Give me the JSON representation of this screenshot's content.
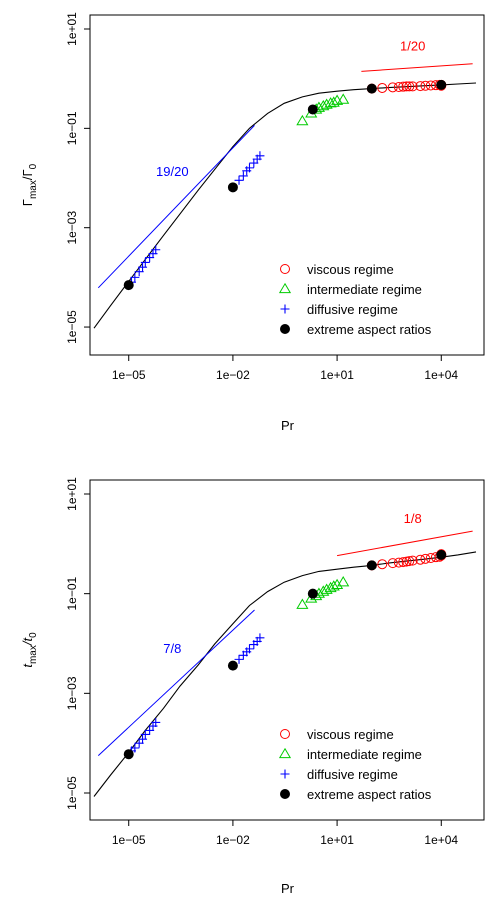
{
  "chart_data": [
    {
      "type": "scatter",
      "xlabel": "Pr",
      "ylabel_main": "Γ",
      "ylabel_sub_num": "max",
      "ylabel_div": "/Γ",
      "ylabel_sub_den": "0",
      "x_log": true,
      "y_log": true,
      "xlim": [
        1e-06,
        100000
      ],
      "ylim": [
        5e-06,
        10
      ],
      "x_ticks": [
        {
          "v": 1e-05,
          "label": "1e−05"
        },
        {
          "v": 0.01,
          "label": "1e−02"
        },
        {
          "v": 10,
          "label": "1e+01"
        },
        {
          "v": 10000,
          "label": "1e+04"
        }
      ],
      "y_ticks": [
        {
          "v": 1e-05,
          "label": "1e−05"
        },
        {
          "v": 0.001,
          "label": "1e−03"
        },
        {
          "v": 0.1,
          "label": "1e−01"
        },
        {
          "v": 10,
          "label": "1e+01"
        }
      ],
      "legend_position": "bottom-right",
      "legend": [
        {
          "key": "viscous",
          "label": "viscous regime",
          "marker": "circle-open",
          "color": "#ff0000"
        },
        {
          "key": "intermediate",
          "label": "intermediate regime",
          "marker": "triangle-open",
          "color": "#00cc00"
        },
        {
          "key": "diffusive",
          "label": "diffusive regime",
          "marker": "plus",
          "color": "#0000ff"
        },
        {
          "key": "extreme",
          "label": "extreme aspect ratios",
          "marker": "circle-filled",
          "color": "#000000"
        }
      ],
      "curve": {
        "x": [
          1e-06,
          3e-06,
          1e-05,
          3e-05,
          0.0001,
          0.0003,
          0.001,
          0.003,
          0.01,
          0.03,
          0.1,
          0.3,
          1,
          3,
          10,
          30,
          100,
          300,
          1000,
          3000,
          10000,
          30000,
          100000
        ],
        "y": [
          9.5e-06,
          2.7e-05,
          8.3e-05,
          0.00023,
          0.0007,
          0.0019,
          0.0057,
          0.015,
          0.043,
          0.1,
          0.2,
          0.32,
          0.43,
          0.51,
          0.56,
          0.6,
          0.63,
          0.66,
          0.69,
          0.72,
          0.75,
          0.78,
          0.82
        ]
      },
      "slopes": [
        {
          "label": "19/20",
          "color": "#0000ff",
          "x": [
            1.33e-06,
            0.0419
          ],
          "y": [
            6.17e-05,
            0.1148
          ],
          "label_x": 0.00018,
          "label_y": 0.011
        },
        {
          "label": "1/20",
          "color": "#ff0000",
          "x": [
            50,
            80000
          ],
          "y": [
            1.4,
            2.0
          ],
          "label_x": 1500,
          "label_y": 3.7
        }
      ],
      "series": [
        {
          "key": "viscous",
          "points": [
            [
              100,
              0.63
            ],
            [
              200,
              0.65
            ],
            [
              400,
              0.67
            ],
            [
              600,
              0.68
            ],
            [
              800,
              0.69
            ],
            [
              1000,
              0.7
            ],
            [
              1200,
              0.7
            ],
            [
              1500,
              0.7
            ],
            [
              2500,
              0.71
            ],
            [
              3500,
              0.72
            ],
            [
              5000,
              0.73
            ],
            [
              7000,
              0.74
            ],
            [
              9000,
              0.75
            ],
            [
              10000,
              0.75
            ],
            [
              10000,
              0.72
            ]
          ]
        },
        {
          "key": "intermediate",
          "points": [
            [
              1,
              0.14
            ],
            [
              1.8,
              0.2
            ],
            [
              2.5,
              0.24
            ],
            [
              3,
              0.26
            ],
            [
              4,
              0.28
            ],
            [
              5,
              0.3
            ],
            [
              6.5,
              0.32
            ],
            [
              8,
              0.33
            ],
            [
              10,
              0.36
            ],
            [
              15,
              0.38
            ]
          ]
        },
        {
          "key": "diffusive",
          "points": [
            [
              1e-05,
              7e-05
            ],
            [
              1.2e-05,
              8e-05
            ],
            [
              1.5e-05,
              0.0001
            ],
            [
              2e-05,
              0.00013
            ],
            [
              2.5e-05,
              0.00016
            ],
            [
              3e-05,
              0.0002
            ],
            [
              4e-05,
              0.00025
            ],
            [
              5e-05,
              0.0003
            ],
            [
              6e-05,
              0.00036
            ],
            [
              0.01,
              0.0065
            ],
            [
              0.015,
              0.009
            ],
            [
              0.02,
              0.011
            ],
            [
              0.025,
              0.014
            ],
            [
              0.03,
              0.016
            ],
            [
              0.04,
              0.02
            ],
            [
              0.05,
              0.024
            ],
            [
              0.06,
              0.028
            ]
          ]
        },
        {
          "key": "extreme",
          "points": [
            [
              1e-05,
              7e-05
            ],
            [
              0.01,
              0.0065
            ],
            [
              2,
              0.24
            ],
            [
              100,
              0.63
            ],
            [
              10000,
              0.75
            ]
          ]
        }
      ]
    },
    {
      "type": "scatter",
      "xlabel": "Pr",
      "ylabel_main": "t",
      "ylabel_sub_num": "max",
      "ylabel_div": "/t",
      "ylabel_sub_den": "0",
      "x_log": true,
      "y_log": true,
      "xlim": [
        1e-06,
        100000
      ],
      "ylim": [
        5e-06,
        10
      ],
      "x_ticks": [
        {
          "v": 1e-05,
          "label": "1e−05"
        },
        {
          "v": 0.01,
          "label": "1e−02"
        },
        {
          "v": 10,
          "label": "1e+01"
        },
        {
          "v": 10000,
          "label": "1e+04"
        }
      ],
      "y_ticks": [
        {
          "v": 1e-05,
          "label": "1e−05"
        },
        {
          "v": 0.001,
          "label": "1e−03"
        },
        {
          "v": 0.1,
          "label": "1e−01"
        },
        {
          "v": 10,
          "label": "1e+01"
        }
      ],
      "legend_position": "bottom-right",
      "legend": [
        {
          "key": "viscous",
          "label": "viscous regime",
          "marker": "circle-open",
          "color": "#ff0000"
        },
        {
          "key": "intermediate",
          "label": "intermediate regime",
          "marker": "triangle-open",
          "color": "#00cc00"
        },
        {
          "key": "diffusive",
          "label": "diffusive regime",
          "marker": "plus",
          "color": "#0000ff"
        },
        {
          "key": "extreme",
          "label": "extreme aspect ratios",
          "marker": "circle-filled",
          "color": "#000000"
        }
      ],
      "curve": {
        "x": [
          1e-06,
          3e-06,
          1e-05,
          3e-05,
          0.0001,
          0.0003,
          0.001,
          0.003,
          0.01,
          0.03,
          0.1,
          0.3,
          1,
          3,
          10,
          30,
          100,
          300,
          1000,
          3000,
          10000,
          30000,
          100000
        ],
        "y": [
          8.5e-06,
          2.3e-05,
          6.5e-05,
          0.00018,
          0.0005,
          0.0014,
          0.0037,
          0.0098,
          0.025,
          0.058,
          0.11,
          0.17,
          0.23,
          0.28,
          0.31,
          0.34,
          0.37,
          0.41,
          0.45,
          0.49,
          0.54,
          0.6,
          0.69
        ]
      },
      "slopes": [
        {
          "label": "7/8",
          "color": "#0000ff",
          "x": [
            1.33e-06,
            0.0419
          ],
          "y": [
            5.62e-05,
            0.0471
          ],
          "label_x": 0.00018,
          "label_y": 0.0065
        },
        {
          "label": "1/8",
          "color": "#ff0000",
          "x": [
            10,
            80000
          ],
          "y": [
            0.58,
            1.8
          ],
          "label_x": 1500,
          "label_y": 2.6
        }
      ],
      "series": [
        {
          "key": "viscous",
          "points": [
            [
              100,
              0.37
            ],
            [
              200,
              0.39
            ],
            [
              400,
              0.41
            ],
            [
              600,
              0.42
            ],
            [
              800,
              0.43
            ],
            [
              1000,
              0.44
            ],
            [
              1200,
              0.45
            ],
            [
              1500,
              0.46
            ],
            [
              2500,
              0.48
            ],
            [
              3500,
              0.5
            ],
            [
              5000,
              0.52
            ],
            [
              7000,
              0.54
            ],
            [
              9000,
              0.55
            ],
            [
              10000,
              0.58
            ],
            [
              10000,
              0.62
            ]
          ]
        },
        {
          "key": "intermediate",
          "points": [
            [
              1,
              0.06
            ],
            [
              1.8,
              0.08
            ],
            [
              2.5,
              0.09
            ],
            [
              3,
              0.1
            ],
            [
              4,
              0.11
            ],
            [
              5,
              0.12
            ],
            [
              6.5,
              0.13
            ],
            [
              8,
              0.14
            ],
            [
              10,
              0.15
            ],
            [
              15,
              0.17
            ]
          ]
        },
        {
          "key": "diffusive",
          "points": [
            [
              1e-05,
              6e-05
            ],
            [
              1.2e-05,
              7e-05
            ],
            [
              1.5e-05,
              8e-05
            ],
            [
              2e-05,
              0.0001
            ],
            [
              2.5e-05,
              0.00012
            ],
            [
              3e-05,
              0.00015
            ],
            [
              4e-05,
              0.00018
            ],
            [
              5e-05,
              0.00022
            ],
            [
              6e-05,
              0.00026
            ],
            [
              0.01,
              0.0036
            ],
            [
              0.015,
              0.0048
            ],
            [
              0.02,
              0.0058
            ],
            [
              0.025,
              0.0068
            ],
            [
              0.03,
              0.0078
            ],
            [
              0.04,
              0.0095
            ],
            [
              0.05,
              0.011
            ],
            [
              0.06,
              0.013
            ]
          ]
        },
        {
          "key": "extreme",
          "points": [
            [
              1e-05,
              6e-05
            ],
            [
              0.01,
              0.0036
            ],
            [
              2,
              0.1
            ],
            [
              100,
              0.37
            ],
            [
              10000,
              0.6
            ]
          ]
        }
      ]
    }
  ]
}
